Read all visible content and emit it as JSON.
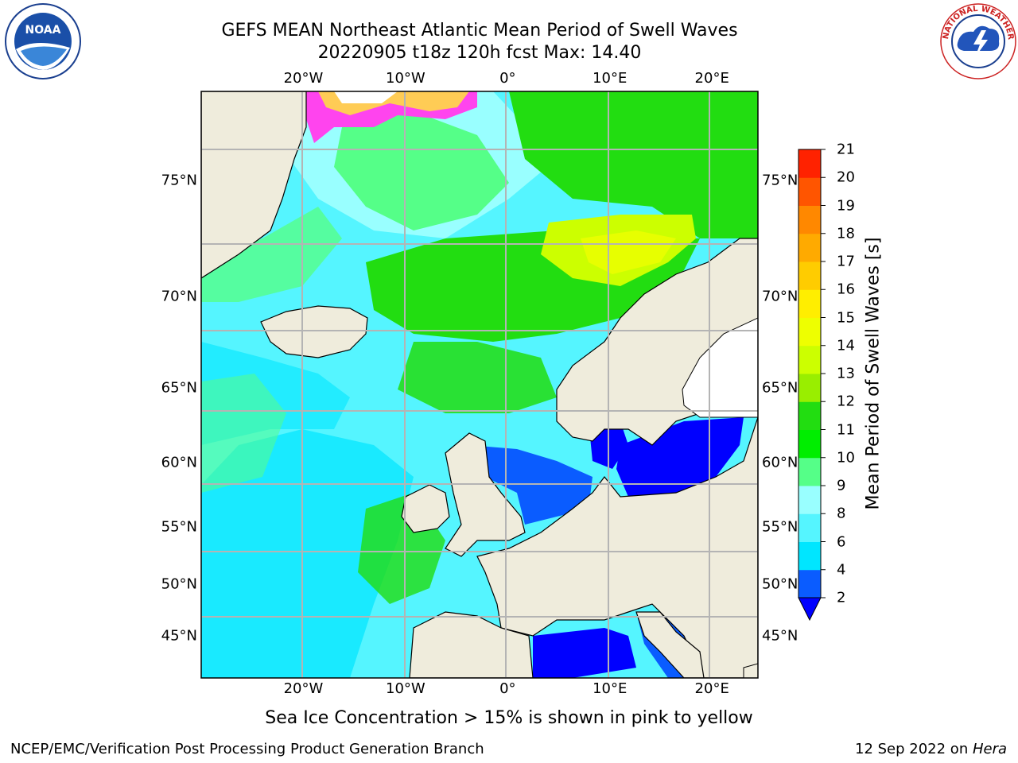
{
  "title": {
    "line1": "GEFS MEAN Northeast Atlantic Mean Period of Swell Waves",
    "line2": "20220905 t18z 120h fcst   Max: 14.40"
  },
  "map": {
    "projection": "mercator",
    "lon_range": [
      -30,
      24.5
    ],
    "lat_range": [
      40.5,
      78
    ],
    "lon_ticks": [
      {
        "value": -20,
        "label": "20°W"
      },
      {
        "value": -10,
        "label": "10°W"
      },
      {
        "value": 0,
        "label": "0°"
      },
      {
        "value": 10,
        "label": "10°E"
      },
      {
        "value": 20,
        "label": "20°E"
      }
    ],
    "lat_ticks": [
      {
        "value": 45,
        "label": "45°N"
      },
      {
        "value": 50,
        "label": "50°N"
      },
      {
        "value": 55,
        "label": "55°N"
      },
      {
        "value": 60,
        "label": "60°N"
      },
      {
        "value": 65,
        "label": "65°N"
      },
      {
        "value": 70,
        "label": "70°N"
      },
      {
        "value": 75,
        "label": "75°N"
      }
    ],
    "land_color": "#efecdc",
    "grid_color": "#b4b4b4"
  },
  "colorbar": {
    "label": "Mean Period of Swell Waves [s]",
    "ticks": [
      "2",
      "4",
      "6",
      "8",
      "9",
      "10",
      "11",
      "12",
      "13",
      "14",
      "15",
      "16",
      "17",
      "18",
      "19",
      "20",
      "21"
    ],
    "colors": [
      "#0a5cff",
      "#00e6ff",
      "#55f5ff",
      "#99ffff",
      "#55ff88",
      "#00ee00",
      "#22dd11",
      "#99ee00",
      "#ccff00",
      "#eeff00",
      "#ffee00",
      "#ffcc00",
      "#ffaa00",
      "#ff8800",
      "#ff5500",
      "#ff2200"
    ],
    "under_color": "#0000ff",
    "extend": "min"
  },
  "footer": {
    "ice_note": "Sea Ice Concentration > 15% is shown in pink to yellow",
    "credit": "NCEP/EMC/Verification Post Processing Product Generation Branch",
    "date_prefix": "12 Sep 2022 on ",
    "host": "Hera"
  },
  "logos": {
    "noaa_text": "NOAA",
    "nws_text": "NATIONAL WEATHER SERVICE"
  }
}
